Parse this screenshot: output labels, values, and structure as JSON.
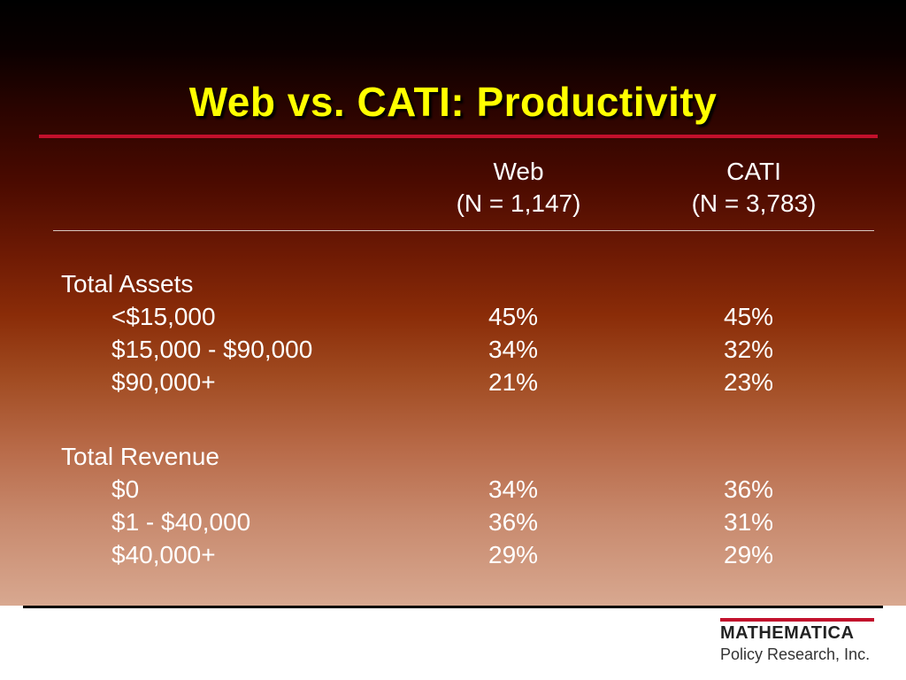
{
  "slide": {
    "title": "Web vs. CATI:  Productivity"
  },
  "columns": {
    "web": {
      "label": "Web",
      "n": "(N = 1,147)"
    },
    "cati": {
      "label": "CATI",
      "n": "(N = 3,783)"
    }
  },
  "sections": [
    {
      "title": "Total Assets",
      "rows": [
        {
          "label": "<$15,000",
          "web": "45%",
          "cati": "45%"
        },
        {
          "label": "$15,000 - $90,000",
          "web": "34%",
          "cati": "32%"
        },
        {
          "label": "$90,000+",
          "web": "21%",
          "cati": "23%"
        }
      ]
    },
    {
      "title": "Total Revenue",
      "rows": [
        {
          "label": "$0",
          "web": "34%",
          "cati": "36%"
        },
        {
          "label": "$1 - $40,000",
          "web": "36%",
          "cati": "31%"
        },
        {
          "label": "$40,000+",
          "web": "29%",
          "cati": "29%"
        }
      ]
    }
  ],
  "logo": {
    "name": "MATHEMATICA",
    "subtitle": "Policy Research, Inc."
  },
  "colors": {
    "title": "#ffff00",
    "accent_rule": "#c2102c",
    "body_text": "#ffffff"
  }
}
